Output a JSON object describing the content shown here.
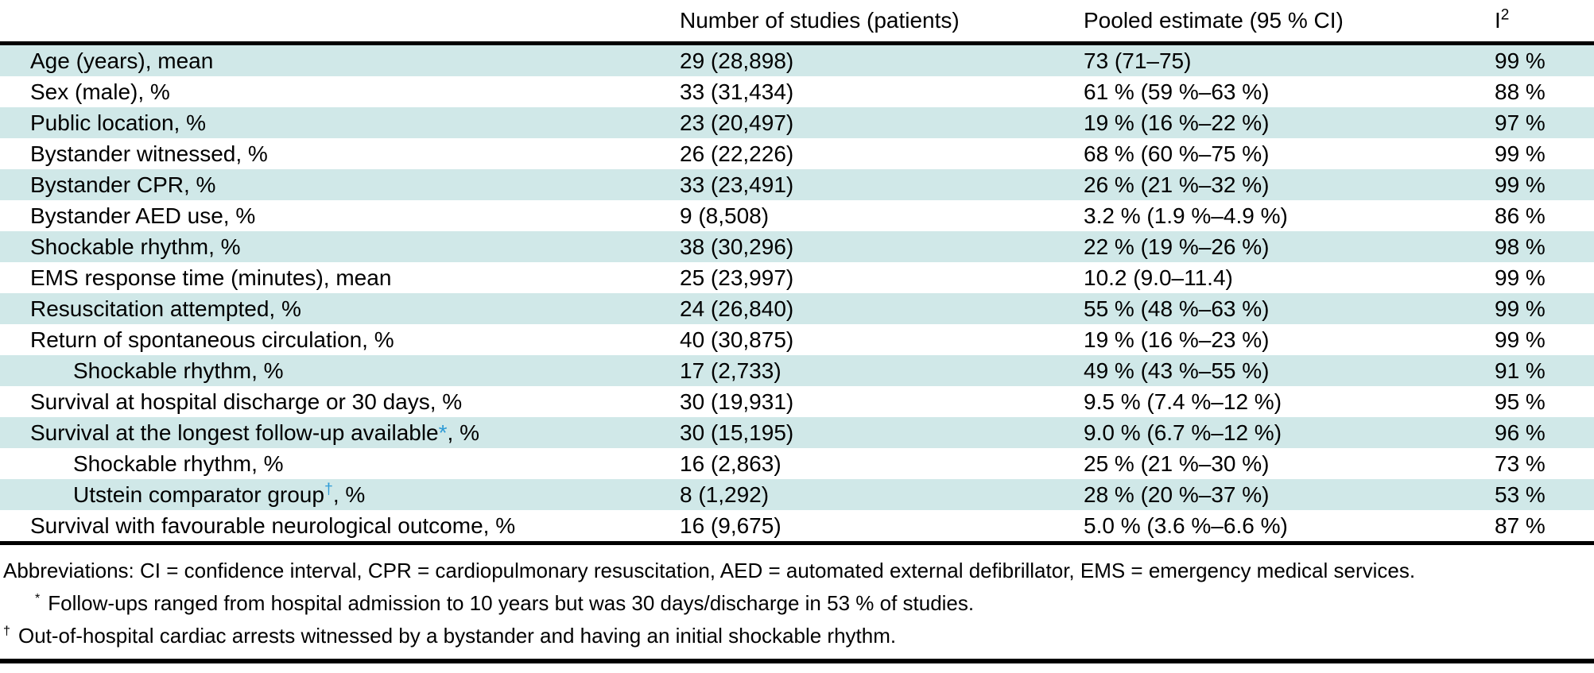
{
  "table": {
    "columns": {
      "parameter": "",
      "studies": "Number of studies (patients)",
      "estimate": "Pooled estimate (95 % CI)",
      "i2_base": "I",
      "i2_sup": "2"
    },
    "rows": [
      {
        "indent": false,
        "label": "Age (years), mean",
        "marker": "",
        "label_suffix": "",
        "studies": "29 (28,898)",
        "estimate": "73 (71–75)",
        "i2": "99 %"
      },
      {
        "indent": false,
        "label": "Sex (male), %",
        "marker": "",
        "label_suffix": "",
        "studies": "33 (31,434)",
        "estimate": "61 % (59 %–63 %)",
        "i2": "88 %"
      },
      {
        "indent": false,
        "label": "Public location, %",
        "marker": "",
        "label_suffix": "",
        "studies": "23 (20,497)",
        "estimate": "19 % (16 %–22 %)",
        "i2": "97 %"
      },
      {
        "indent": false,
        "label": "Bystander witnessed, %",
        "marker": "",
        "label_suffix": "",
        "studies": "26 (22,226)",
        "estimate": "68 % (60 %–75 %)",
        "i2": "99 %"
      },
      {
        "indent": false,
        "label": "Bystander CPR, %",
        "marker": "",
        "label_suffix": "",
        "studies": "33 (23,491)",
        "estimate": "26 % (21 %–32 %)",
        "i2": "99 %"
      },
      {
        "indent": false,
        "label": "Bystander AED use, %",
        "marker": "",
        "label_suffix": "",
        "studies": "9 (8,508)",
        "estimate": "3.2 % (1.9 %–4.9 %)",
        "i2": "86 %"
      },
      {
        "indent": false,
        "label": "Shockable rhythm, %",
        "marker": "",
        "label_suffix": "",
        "studies": "38 (30,296)",
        "estimate": "22 % (19 %–26 %)",
        "i2": "98 %"
      },
      {
        "indent": false,
        "label": "EMS response time (minutes), mean",
        "marker": "",
        "label_suffix": "",
        "studies": "25 (23,997)",
        "estimate": "10.2 (9.0–11.4)",
        "i2": "99 %"
      },
      {
        "indent": false,
        "label": "Resuscitation attempted, %",
        "marker": "",
        "label_suffix": "",
        "studies": "24 (26,840)",
        "estimate": "55 % (48 %–63 %)",
        "i2": "99 %"
      },
      {
        "indent": false,
        "label": "Return of spontaneous circulation, %",
        "marker": "",
        "label_suffix": "",
        "studies": "40 (30,875)",
        "estimate": "19 % (16 %–23 %)",
        "i2": "99 %"
      },
      {
        "indent": true,
        "label": "Shockable rhythm, %",
        "marker": "",
        "label_suffix": "",
        "studies": "17 (2,733)",
        "estimate": "49 % (43 %–55 %)",
        "i2": "91 %"
      },
      {
        "indent": false,
        "label": "Survival at hospital discharge or 30 days, %",
        "marker": "",
        "label_suffix": "",
        "studies": "30 (19,931)",
        "estimate": "9.5 % (7.4 %–12 %)",
        "i2": "95 %"
      },
      {
        "indent": false,
        "label": "Survival at the longest follow-up available",
        "marker": "*",
        "label_suffix": ", %",
        "studies": "30 (15,195)",
        "estimate": "9.0 % (6.7 %–12 %)",
        "i2": "96 %"
      },
      {
        "indent": true,
        "label": "Shockable rhythm, %",
        "marker": "",
        "label_suffix": "",
        "studies": "16 (2,863)",
        "estimate": "25 % (21 %–30 %)",
        "i2": "73 %"
      },
      {
        "indent": true,
        "label": "Utstein comparator group",
        "marker": "†",
        "label_suffix": ", %",
        "studies": "8 (1,292)",
        "estimate": "28 % (20 %–37 %)",
        "i2": "53 %"
      },
      {
        "indent": false,
        "label": "Survival with favourable neurological outcome, %",
        "marker": "",
        "label_suffix": "",
        "studies": "16 (9,675)",
        "estimate": "5.0 % (3.6 %–6.6 %)",
        "i2": "87 %"
      }
    ]
  },
  "footnotes": {
    "abbreviations": "Abbreviations: CI = confidence interval, CPR = cardiopulmonary resuscitation, AED = automated external defibrillator, EMS = emergency medical services.",
    "star_marker": "*",
    "star_text": "Follow-ups ranged from hospital admission to 10 years but was 30 days/discharge in 53 % of studies.",
    "dagger_marker": "†",
    "dagger_text": "Out-of-hospital cardiac arrests witnessed by a bystander and having an initial shockable rhythm."
  },
  "colors": {
    "row_fill": "#d0e8e8",
    "marker_blue": "#2e9bd6",
    "rule_black": "#000000"
  }
}
